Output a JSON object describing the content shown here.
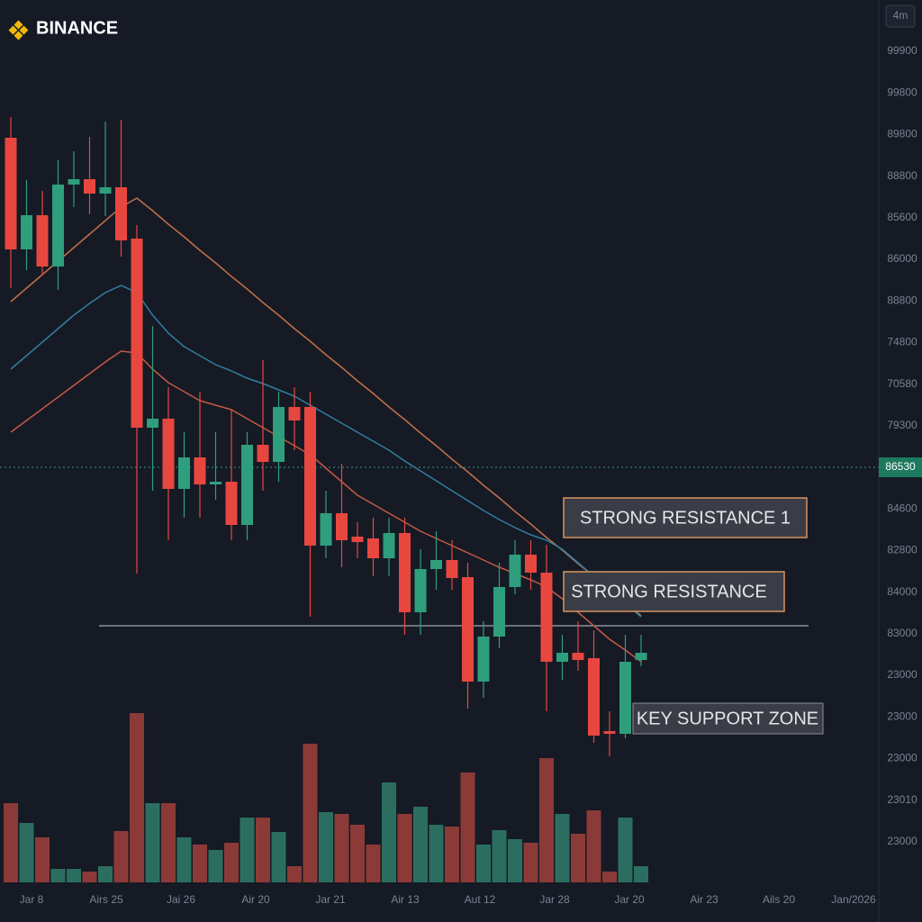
{
  "header": {
    "brand": "BINANCE",
    "timeframe": "4m"
  },
  "chart_data": {
    "type": "candlestick",
    "ylim": [
      0,
      75
    ],
    "volume_lim": [
      0,
      200
    ],
    "up_color": "#2f9e7c",
    "down_color": "#e8473f",
    "up_volume_color": "#2b6e5f",
    "down_volume_color": "#8c3a37",
    "open": [
      69.7,
      57.3,
      61.1,
      55.4,
      64.5,
      65.1,
      63.5,
      64.2,
      58.5,
      37.5,
      38.5,
      30.7,
      34.2,
      31.2,
      31.5,
      26.7,
      35.6,
      33.7,
      39.8,
      39.8,
      24.4,
      28,
      25.4,
      25.2,
      23,
      25.8,
      17,
      21.8,
      22.8,
      20.9,
      9.3,
      14.3,
      19.8,
      23.4,
      21.4,
      11.5,
      12.5,
      11.9,
      3.8,
      3.5,
      11.7
    ],
    "high": [
      72,
      65,
      63.8,
      67.2,
      68.2,
      69.8,
      71.5,
      71.7,
      60,
      48.8,
      42,
      37,
      41.5,
      37,
      39.5,
      37,
      45,
      41.5,
      42,
      41.5,
      30.5,
      33.5,
      27,
      27.5,
      27.5,
      27.5,
      24,
      26,
      25,
      22.5,
      16,
      22.5,
      25,
      25,
      24.5,
      14.5,
      16,
      15,
      6,
      14.5,
      14.5
    ],
    "low": [
      53,
      55,
      54.4,
      52.8,
      62,
      61.2,
      61,
      56.5,
      21.3,
      30.5,
      25,
      27.5,
      27.5,
      29.5,
      25,
      25,
      30.5,
      31.5,
      35,
      16.5,
      23,
      22,
      23,
      21,
      21,
      14.5,
      14.5,
      19.5,
      19.5,
      6.3,
      7.5,
      13,
      19,
      19.5,
      6,
      9.5,
      10.5,
      2.5,
      1,
      3,
      11
    ],
    "close": [
      57.3,
      61.1,
      55.4,
      64.5,
      65.1,
      63.5,
      64.2,
      58.3,
      37.5,
      38.5,
      30.7,
      34.2,
      31.2,
      31.5,
      26.7,
      35.6,
      33.7,
      39.8,
      38.3,
      24.4,
      28,
      25,
      24.8,
      23,
      25.8,
      17,
      21.8,
      22.8,
      20.8,
      9.3,
      14.3,
      19.8,
      23.4,
      21.4,
      11.5,
      12.5,
      11.7,
      3.3,
      3.5,
      11.5,
      12.5
    ],
    "volume": [
      88,
      66,
      50,
      15,
      15,
      12,
      18,
      57,
      188,
      88,
      88,
      50,
      42,
      36,
      44,
      72,
      72,
      56,
      18,
      154,
      78,
      76,
      64,
      42,
      111,
      76,
      84,
      64,
      62,
      122,
      42,
      58,
      48,
      44,
      138,
      76,
      54,
      80,
      12,
      72,
      18
    ],
    "moving_averages": [
      {
        "color": "#c0704a",
        "values": [
          51.5,
          53,
          54.5,
          56,
          57.5,
          59,
          60.5,
          62,
          63,
          61.6,
          60.1,
          58.7,
          57.2,
          55.8,
          54.3,
          52.9,
          51.4,
          50,
          48.5,
          47.1,
          45.6,
          44.2,
          42.7,
          41.3,
          39.8,
          38.4,
          36.9,
          35.5,
          34,
          32.6,
          31.1,
          29.7,
          28.2,
          26.8,
          25.3,
          23.9,
          22.4,
          21,
          19.5,
          18.1,
          16.6
        ]
      },
      {
        "color": "#2f7f9e",
        "values": [
          44,
          45.5,
          47,
          48.5,
          50,
          51.3,
          52.5,
          53.3,
          52.5,
          50,
          48,
          46.5,
          45.5,
          44.5,
          43.8,
          43,
          42.4,
          41.7,
          41,
          40,
          39,
          38,
          37,
          36,
          35,
          33.8,
          32.7,
          31.6,
          30.5,
          29.4,
          28.3,
          27.3,
          26.4,
          25.6,
          25,
          24,
          22.5,
          21,
          19.5,
          18,
          16.5
        ]
      },
      {
        "color": "#c25a44",
        "values": [
          37,
          38.3,
          39.6,
          40.9,
          42.2,
          43.5,
          44.8,
          46,
          45.8,
          44,
          42.5,
          41.5,
          40.5,
          40,
          39.5,
          38.5,
          37.5,
          36.5,
          35.5,
          34.5,
          33,
          31.5,
          30,
          29,
          28,
          27,
          26,
          25.2,
          24.4,
          23.6,
          22.8,
          22,
          21.3,
          20.6,
          19.8,
          18.5,
          17,
          15.5,
          14,
          12.8,
          11.5
        ]
      }
    ],
    "price_labels": [
      "99900",
      "99800",
      "89800",
      "88800",
      "85600",
      "86000",
      "88800",
      "74800",
      "70580",
      "79300",
      "86530",
      "84600",
      "82800",
      "84000",
      "83000",
      "23000",
      "23000",
      "23000",
      "23010",
      "23000"
    ],
    "current_price_index": 10,
    "x_labels": [
      "Jar 8",
      "Airs 25",
      "Jai 26",
      "Air 20",
      "Jar 21",
      "Air 13",
      "Aut 12",
      "Jar 28",
      "Jar 20",
      "Air 23",
      "Ails 20",
      "Jan/2026"
    ],
    "annotations": [
      "STRONG RESISTANCE 1",
      "STRONG RESISTANCE",
      "KEY SUPPORT ZONE"
    ]
  }
}
